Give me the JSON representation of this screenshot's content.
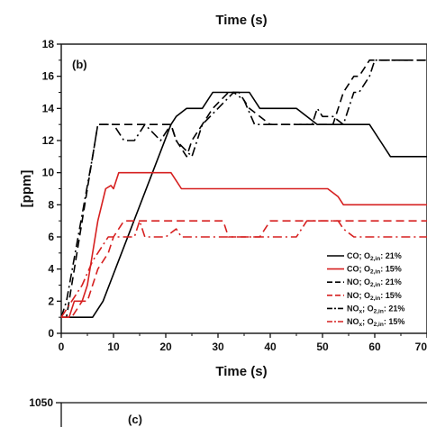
{
  "header": {
    "top_axis_title": "Time (s)"
  },
  "chart_data": [
    {
      "type": "line",
      "panel_label": "(b)",
      "xlabel": "Time (s)",
      "ylabel": "[ppm]",
      "xlim": [
        0,
        70
      ],
      "ylim": [
        0,
        18
      ],
      "x_ticks": [
        "0",
        "10",
        "20",
        "30",
        "40",
        "50",
        "60",
        "70"
      ],
      "y_ticks": [
        "0",
        "2",
        "4",
        "6",
        "8",
        "10",
        "12",
        "14",
        "16",
        "18"
      ],
      "grid": false,
      "legend_position": "bottom-right",
      "series": [
        {
          "name_parts": [
            "CO; O",
            "2,in",
            ": 21%"
          ],
          "color": "#000000",
          "dash": "solid",
          "points": [
            [
              0,
              1
            ],
            [
              6,
              1
            ],
            [
              8,
              2
            ],
            [
              21,
              13
            ],
            [
              22,
              13.5
            ],
            [
              24,
              14
            ],
            [
              27,
              14
            ],
            [
              29,
              15
            ],
            [
              36,
              15
            ],
            [
              38,
              14
            ],
            [
              45,
              14
            ],
            [
              47,
              13.5
            ],
            [
              49,
              13
            ],
            [
              59,
              13
            ],
            [
              61,
              12
            ],
            [
              63,
              11
            ],
            [
              70,
              11
            ]
          ]
        },
        {
          "name_parts": [
            "CO; O",
            "2,in",
            ": 15%"
          ],
          "color": "#d62020",
          "dash": "solid",
          "points": [
            [
              0,
              1
            ],
            [
              1.5,
              1
            ],
            [
              2.5,
              2
            ],
            [
              4,
              2
            ],
            [
              5,
              3
            ],
            [
              7,
              7
            ],
            [
              8.5,
              9
            ],
            [
              9.5,
              9.2
            ],
            [
              10,
              9
            ],
            [
              11,
              10
            ],
            [
              21,
              10
            ],
            [
              22,
              9.5
            ],
            [
              23,
              9
            ],
            [
              51,
              9
            ],
            [
              53,
              8.5
            ],
            [
              54,
              8
            ],
            [
              70,
              8
            ]
          ]
        },
        {
          "name_parts": [
            "NO; O",
            "2,in",
            ": 21%"
          ],
          "color": "#000000",
          "dash": "dash",
          "points": [
            [
              0,
              1
            ],
            [
              1,
              1
            ],
            [
              7,
              13
            ],
            [
              21,
              13
            ],
            [
              22,
              12
            ],
            [
              24,
              11
            ],
            [
              25,
              12
            ],
            [
              29,
              14
            ],
            [
              32,
              15
            ],
            [
              34,
              15
            ],
            [
              36,
              14
            ],
            [
              40,
              13
            ],
            [
              50,
              13
            ],
            [
              52,
              13
            ],
            [
              54,
              15
            ],
            [
              55,
              15.5
            ],
            [
              56,
              16
            ],
            [
              57,
              16
            ],
            [
              59,
              17
            ],
            [
              70,
              17
            ]
          ]
        },
        {
          "name_parts": [
            "NO; O",
            "2,in",
            ": 15%"
          ],
          "color": "#d62020",
          "dash": "dash",
          "points": [
            [
              0,
              1
            ],
            [
              2,
              1
            ],
            [
              4,
              2
            ],
            [
              5,
              2
            ],
            [
              7,
              4
            ],
            [
              9,
              5
            ],
            [
              10,
              6
            ],
            [
              11,
              6.5
            ],
            [
              12,
              7
            ],
            [
              31,
              7
            ],
            [
              32,
              6
            ],
            [
              38,
              6
            ],
            [
              39,
              6.5
            ],
            [
              40,
              7
            ],
            [
              70,
              7
            ]
          ]
        },
        {
          "name_parts": [
            "NO",
            "x",
            "; O",
            "2,in",
            ": 21%"
          ],
          "color": "#000000",
          "dash": "dashdot",
          "points": [
            [
              0,
              1
            ],
            [
              1,
              2
            ],
            [
              6,
              11
            ],
            [
              7,
              13
            ],
            [
              10,
              13
            ],
            [
              11,
              12.5
            ],
            [
              12,
              12
            ],
            [
              14,
              12
            ],
            [
              16,
              13
            ],
            [
              19,
              12
            ],
            [
              21,
              13
            ],
            [
              22,
              12
            ],
            [
              25,
              11
            ],
            [
              27,
              13
            ],
            [
              30,
              14
            ],
            [
              33,
              15
            ],
            [
              35,
              14.5
            ],
            [
              37,
              13
            ],
            [
              48,
              13
            ],
            [
              49,
              14
            ],
            [
              50,
              13.5
            ],
            [
              52,
              13.5
            ],
            [
              54,
              13
            ],
            [
              55,
              14
            ],
            [
              56,
              15
            ],
            [
              57,
              15
            ],
            [
              59,
              16
            ],
            [
              60,
              17
            ],
            [
              70,
              17
            ]
          ]
        },
        {
          "name_parts": [
            "NO",
            "x",
            "; O",
            "2,in",
            ": 15%"
          ],
          "color": "#d62020",
          "dash": "dashdot",
          "points": [
            [
              0,
              1
            ],
            [
              1,
              1.5
            ],
            [
              4,
              3
            ],
            [
              6,
              4.5
            ],
            [
              8,
              5.5
            ],
            [
              9,
              6
            ],
            [
              14,
              6
            ],
            [
              15,
              7
            ],
            [
              16,
              6
            ],
            [
              20,
              6
            ],
            [
              22,
              6.5
            ],
            [
              23,
              6
            ],
            [
              45,
              6
            ],
            [
              46,
              6.5
            ],
            [
              47,
              7
            ],
            [
              53,
              7
            ],
            [
              54,
              6.5
            ],
            [
              56,
              6
            ],
            [
              70,
              6
            ]
          ]
        }
      ]
    },
    {
      "type": "line",
      "panel_label": "(c)",
      "y_ticks": [
        "1050"
      ]
    }
  ]
}
